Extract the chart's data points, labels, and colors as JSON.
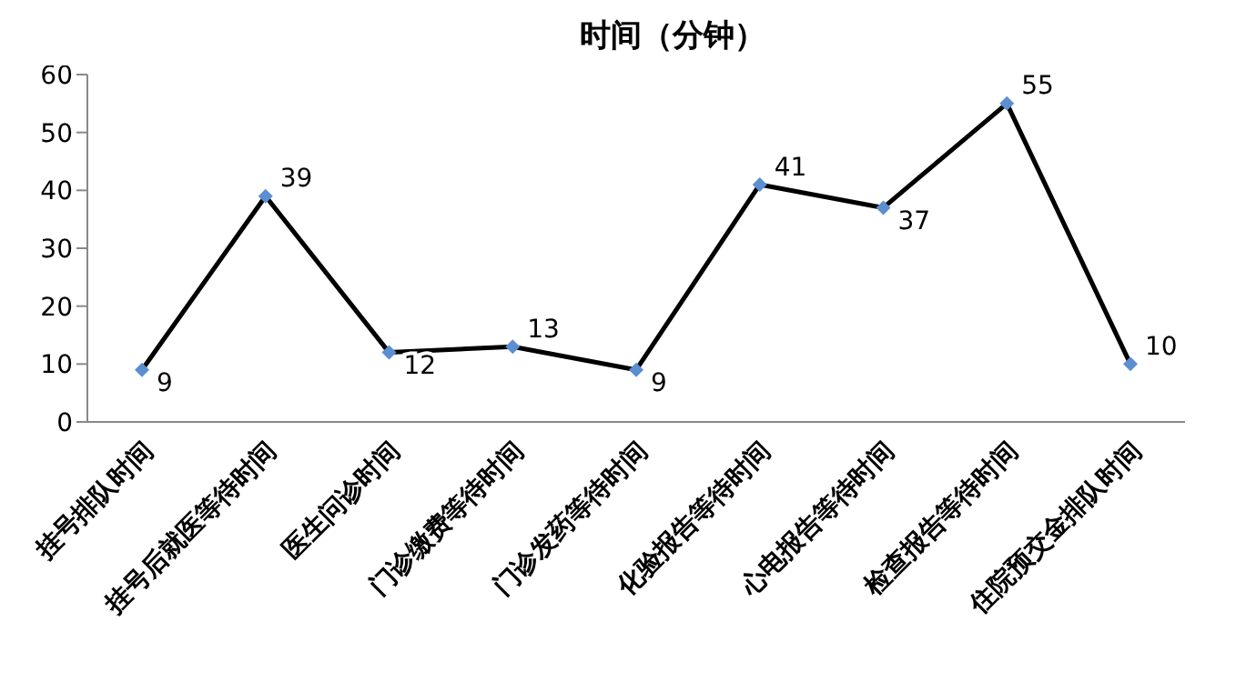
{
  "chart_data": {
    "type": "line",
    "title": "时间（分钟）",
    "categories": [
      "挂号排队时间",
      "挂号后就医等待时间",
      "医生问诊时间",
      "门诊缴费等待时间",
      "门诊发药等待时间",
      "化验报告等待时间",
      "心电报告等待时间",
      "检查报告等待时间",
      "住院预交金排队时间"
    ],
    "series": [
      {
        "color": "#000000",
        "values": [
          9,
          39,
          12,
          13,
          9,
          41,
          37,
          55,
          10
        ]
      }
    ],
    "ylim": [
      0,
      60
    ],
    "yticks": [
      0,
      10,
      20,
      30,
      40,
      50,
      60
    ],
    "marker": "diamond",
    "line_style": "solid",
    "data_labels": true
  }
}
